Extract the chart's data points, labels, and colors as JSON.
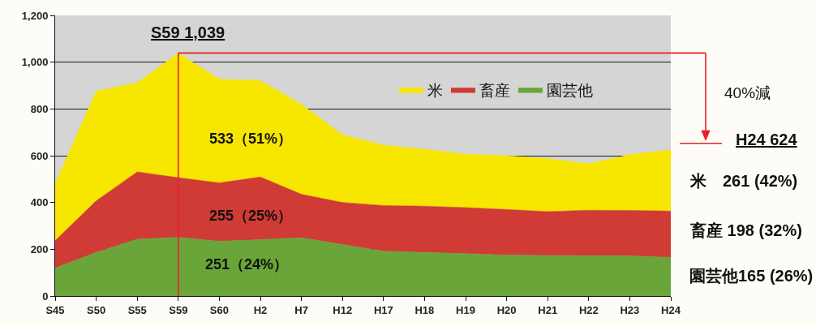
{
  "chart_data": {
    "type": "area",
    "stacked": true,
    "categories": [
      "S45",
      "S50",
      "S55",
      "S59",
      "S60",
      "H2",
      "H7",
      "H12",
      "H17",
      "H18",
      "H19",
      "H20",
      "H21",
      "H22",
      "H23",
      "H24"
    ],
    "series": [
      {
        "name": "園芸他",
        "color": "#6aa53a",
        "values": [
          120,
          186,
          243,
          251,
          234,
          241,
          249,
          220,
          192,
          186,
          181,
          175,
          173,
          172,
          172,
          165
        ]
      },
      {
        "name": "畜産",
        "color": "#d03b36",
        "values": [
          117,
          221,
          288,
          255,
          250,
          268,
          186,
          180,
          195,
          198,
          197,
          195,
          188,
          195,
          194,
          198
        ]
      },
      {
        "name": "米",
        "color": "#f7e600",
        "values": [
          243,
          469,
          381,
          533,
          443,
          412,
          385,
          289,
          258,
          244,
          228,
          230,
          226,
          198,
          238,
          261
        ]
      }
    ],
    "ylim": [
      0,
      1200
    ],
    "yticks": [
      0,
      200,
      400,
      600,
      800,
      {
        "value": 1000,
        "label": "1,000"
      },
      {
        "value": 1200,
        "label": "1,200"
      }
    ],
    "grid": "y",
    "legend": "top right",
    "ref_lines": [
      {
        "axis": "x",
        "value": "S59",
        "color": "#e8202a"
      },
      {
        "axis": "y",
        "value": 1039,
        "color": "#e8202a"
      }
    ],
    "annotations": [
      {
        "text": "S59 1,039",
        "x": "S59",
        "y": 1039
      },
      "533（51%）",
      "255（25%）",
      "251（24%）",
      "40%減",
      "H24 624",
      "米　261 (42%)",
      "畜産 198 (32%)",
      "園芸他165 (26%)"
    ]
  }
}
